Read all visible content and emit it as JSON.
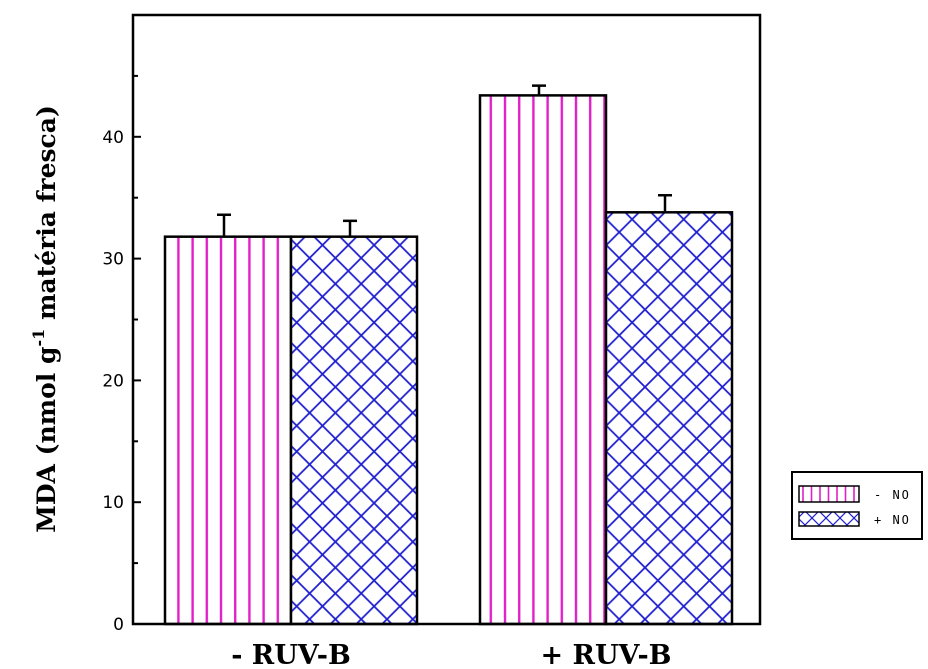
{
  "chart_data": {
    "type": "bar",
    "title": "",
    "xlabel": "",
    "ylabel": {
      "prefix": "MDA (nmol g",
      "superscript": "-1",
      "suffix": " matéria fresca)"
    },
    "categories": [
      "- RUV-B",
      "+ RUV-B"
    ],
    "yticks": [
      "0",
      "10",
      "20",
      "30",
      "40"
    ],
    "ylim": [
      0,
      50
    ],
    "grid": false,
    "legend_position": "right",
    "series": [
      {
        "name": "- NO",
        "values": [
          31.8,
          43.4
        ],
        "errors": [
          1.8,
          0.8
        ],
        "pattern": "vertical-lines",
        "color": "#e020c8"
      },
      {
        "name": "+ NO",
        "values": [
          31.8,
          33.8
        ],
        "errors": [
          1.3,
          1.4
        ],
        "pattern": "crosshatch",
        "color": "#2020d0"
      }
    ]
  }
}
